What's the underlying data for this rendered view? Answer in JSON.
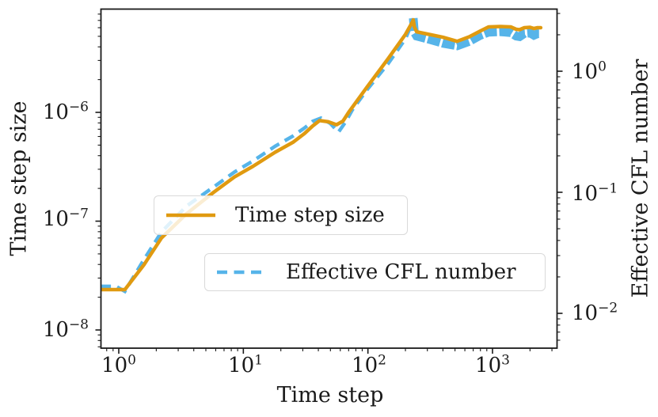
{
  "figure": {
    "background": "#ffffff",
    "text_color": "#1a1a1a"
  },
  "axes": {
    "x": {
      "label": "Time step",
      "scale": "log",
      "ticks": [
        {
          "base": "10",
          "exp": "0"
        },
        {
          "base": "10",
          "exp": "1"
        },
        {
          "base": "10",
          "exp": "2"
        },
        {
          "base": "10",
          "exp": "3"
        }
      ]
    },
    "y_left": {
      "label": "Time step size",
      "scale": "log",
      "ticks": [
        {
          "base": "10",
          "exp": "−6"
        },
        {
          "base": "10",
          "exp": "−7"
        },
        {
          "base": "10",
          "exp": "−8"
        }
      ]
    },
    "y_right": {
      "label": "Effective CFL number",
      "scale": "log",
      "ticks": [
        {
          "base": "10",
          "exp": "0"
        },
        {
          "base": "10",
          "exp": "−1"
        },
        {
          "base": "10",
          "exp": "−2"
        }
      ]
    }
  },
  "legend": {
    "entries": [
      {
        "label": "Time step size",
        "color": "#E09A10",
        "style": "solid"
      },
      {
        "label": "Effective CFL number",
        "color": "#56B4E9",
        "style": "dashed"
      }
    ]
  },
  "chart_data": {
    "type": "line",
    "title": "",
    "xlabel": "Time step",
    "x_scale": "log",
    "x_range": [
      0.72,
      3270
    ],
    "grid": false,
    "y_left_axis": {
      "label": "Time step size",
      "scale": "log",
      "range": [
        6.8e-09,
        9e-06
      ]
    },
    "y_right_axis": {
      "label": "Effective CFL number",
      "scale": "log",
      "range": [
        0.0052,
        3.3
      ]
    },
    "series": [
      {
        "name": "Time step size",
        "axis": "left",
        "color": "#E09A10",
        "style": "solid",
        "points": [
          [
            0.715,
            2.35e-08
          ],
          [
            1.0,
            2.35e-08
          ],
          [
            1.12,
            2.35e-08
          ],
          [
            1.6,
            4e-08
          ],
          [
            2.2,
            7e-08
          ],
          [
            3.5,
            1.17e-07
          ],
          [
            5.8,
            1.85e-07
          ],
          [
            8.5,
            2.55e-07
          ],
          [
            12,
            3.2e-07
          ],
          [
            18,
            4.3e-07
          ],
          [
            25,
            5.3e-07
          ],
          [
            31,
            6.4e-07
          ],
          [
            36,
            7.5e-07
          ],
          [
            41,
            8.4e-07
          ],
          [
            48,
            8.2e-07
          ],
          [
            56,
            7.7e-07
          ],
          [
            63,
            8.3e-07
          ],
          [
            70,
            1e-06
          ],
          [
            98,
            1.7e-06
          ],
          [
            145,
            3.1e-06
          ],
          [
            200,
            5.2e-06
          ],
          [
            228,
            6.8e-06
          ],
          [
            231,
            7.1e-06
          ],
          [
            236,
            6.1e-06
          ],
          [
            246,
            5.5e-06
          ],
          [
            300,
            5.25e-06
          ],
          [
            400,
            4.9e-06
          ],
          [
            520,
            4.5e-06
          ],
          [
            650,
            4.95e-06
          ],
          [
            800,
            5.6e-06
          ],
          [
            930,
            6.1e-06
          ],
          [
            1150,
            6.15e-06
          ],
          [
            1400,
            6.1e-06
          ],
          [
            1550,
            5.8e-06
          ],
          [
            1650,
            5.75e-06
          ],
          [
            1800,
            6e-06
          ],
          [
            2000,
            6.05e-06
          ],
          [
            2150,
            5.9e-06
          ],
          [
            2300,
            6e-06
          ],
          [
            2440,
            6e-06
          ]
        ]
      },
      {
        "name": "Effective CFL number",
        "axis": "right",
        "color": "#56B4E9",
        "style": "dashed",
        "band_from": 231,
        "points": [
          [
            0.715,
            0.0167
          ],
          [
            0.95,
            0.0167
          ],
          [
            1.12,
            0.0152
          ],
          [
            1.6,
            0.028
          ],
          [
            2.2,
            0.047
          ],
          [
            3.5,
            0.077
          ],
          [
            5.8,
            0.111
          ],
          [
            8.5,
            0.147
          ],
          [
            12,
            0.182
          ],
          [
            18,
            0.24
          ],
          [
            25,
            0.291
          ],
          [
            31,
            0.34
          ],
          [
            36,
            0.385
          ],
          [
            42,
            0.41
          ],
          [
            50,
            0.37
          ],
          [
            58,
            0.314
          ],
          [
            66,
            0.38
          ],
          [
            75,
            0.48
          ],
          [
            98,
            0.7
          ],
          [
            145,
            1.15
          ],
          [
            200,
            1.85
          ],
          [
            228,
            2.55
          ],
          [
            231,
            2.74
          ],
          [
            236,
            2.1
          ],
          [
            246,
            1.95
          ],
          [
            300,
            1.85
          ],
          [
            400,
            1.7
          ],
          [
            520,
            1.62
          ],
          [
            650,
            1.76
          ],
          [
            800,
            1.98
          ],
          [
            930,
            2.1
          ],
          [
            1150,
            2.12
          ],
          [
            1400,
            2.08
          ],
          [
            1550,
            1.95
          ],
          [
            1650,
            1.93
          ],
          [
            1800,
            2.05
          ],
          [
            2000,
            2.07
          ],
          [
            2150,
            1.98
          ],
          [
            2300,
            2.04
          ],
          [
            2440,
            2.04
          ]
        ]
      }
    ]
  }
}
